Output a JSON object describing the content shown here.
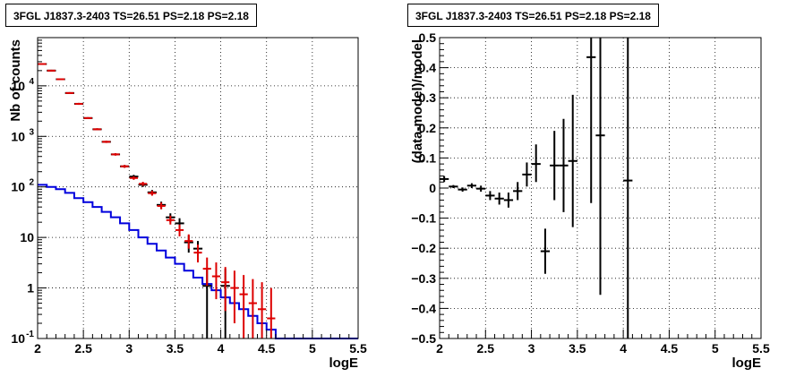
{
  "chart_data": [
    {
      "type": "line",
      "title": "3FGL J1837.3-2403 TS=26.51 PS=2.18 PS=2.18",
      "xlabel": "logE",
      "ylabel": "Nb of counts",
      "xlim": [
        2,
        5.5
      ],
      "ylim": [
        0.1,
        90000
      ],
      "yscale": "log",
      "grid": true,
      "x_ticks": [
        "2",
        "2.5",
        "3",
        "3.5",
        "4",
        "4.5",
        "5",
        "5.5"
      ],
      "y_ticks": [
        {
          "v": 0.1,
          "label": "10",
          "exp": "-1"
        },
        {
          "v": 1,
          "label": "1",
          "exp": ""
        },
        {
          "v": 10,
          "label": "10",
          "exp": ""
        },
        {
          "v": 100,
          "label": "10",
          "exp": "2"
        },
        {
          "v": 1000,
          "label": "10",
          "exp": "3"
        },
        {
          "v": 10000,
          "label": "10",
          "exp": "4"
        }
      ],
      "colors": {
        "data": "#000000",
        "model": "#dd0000",
        "background": "#0000dd"
      },
      "bin_width": 0.1,
      "data_points": [
        {
          "x": 2.05,
          "y": 27000,
          "lo": 26800,
          "hi": 27200
        },
        {
          "x": 2.15,
          "y": 20000,
          "lo": 19850,
          "hi": 20150
        },
        {
          "x": 2.25,
          "y": 13500,
          "lo": 13380,
          "hi": 13620
        },
        {
          "x": 2.35,
          "y": 7200,
          "lo": 7110,
          "hi": 7290
        },
        {
          "x": 2.45,
          "y": 4400,
          "lo": 4330,
          "hi": 4470
        },
        {
          "x": 2.55,
          "y": 2300,
          "lo": 2250,
          "hi": 2350
        },
        {
          "x": 2.65,
          "y": 1380,
          "lo": 1340,
          "hi": 1420
        },
        {
          "x": 2.75,
          "y": 780,
          "lo": 750,
          "hi": 810
        },
        {
          "x": 2.85,
          "y": 440,
          "lo": 420,
          "hi": 460
        },
        {
          "x": 2.95,
          "y": 255,
          "lo": 240,
          "hi": 270
        },
        {
          "x": 3.05,
          "y": 160,
          "lo": 147,
          "hi": 173
        },
        {
          "x": 3.15,
          "y": 110,
          "lo": 100,
          "hi": 120
        },
        {
          "x": 3.25,
          "y": 78,
          "lo": 69,
          "hi": 87
        },
        {
          "x": 3.35,
          "y": 44,
          "lo": 37,
          "hi": 51
        },
        {
          "x": 3.45,
          "y": 25,
          "lo": 20,
          "hi": 30
        },
        {
          "x": 3.55,
          "y": 19,
          "lo": 15,
          "hi": 24
        },
        {
          "x": 3.65,
          "y": 8,
          "lo": 5,
          "hi": 11
        },
        {
          "x": 3.75,
          "y": 6,
          "lo": 4,
          "hi": 8.5
        },
        {
          "x": 3.85,
          "y": 1.1,
          "lo": 0.1,
          "hi": 2.4
        },
        {
          "x": 4.05,
          "y": 1.1,
          "lo": 0.1,
          "hi": 2.4
        }
      ],
      "model_points": [
        {
          "x": 2.05,
          "y": 27000,
          "lo": 26000,
          "hi": 28000
        },
        {
          "x": 2.15,
          "y": 20000,
          "lo": 19200,
          "hi": 20800
        },
        {
          "x": 2.25,
          "y": 13500,
          "lo": 13000,
          "hi": 14000
        },
        {
          "x": 2.35,
          "y": 7200,
          "lo": 6900,
          "hi": 7500
        },
        {
          "x": 2.45,
          "y": 4400,
          "lo": 4200,
          "hi": 4600
        },
        {
          "x": 2.55,
          "y": 2300,
          "lo": 2200,
          "hi": 2400
        },
        {
          "x": 2.65,
          "y": 1380,
          "lo": 1320,
          "hi": 1450
        },
        {
          "x": 2.75,
          "y": 780,
          "lo": 740,
          "hi": 820
        },
        {
          "x": 2.85,
          "y": 440,
          "lo": 415,
          "hi": 465
        },
        {
          "x": 2.95,
          "y": 255,
          "lo": 238,
          "hi": 272
        },
        {
          "x": 3.05,
          "y": 150,
          "lo": 138,
          "hi": 162
        },
        {
          "x": 3.15,
          "y": 115,
          "lo": 105,
          "hi": 126
        },
        {
          "x": 3.25,
          "y": 75,
          "lo": 67,
          "hi": 84
        },
        {
          "x": 3.35,
          "y": 42,
          "lo": 36,
          "hi": 49
        },
        {
          "x": 3.45,
          "y": 22,
          "lo": 18,
          "hi": 27
        },
        {
          "x": 3.55,
          "y": 14,
          "lo": 10.5,
          "hi": 18
        },
        {
          "x": 3.65,
          "y": 8.5,
          "lo": 6,
          "hi": 11.5
        },
        {
          "x": 3.75,
          "y": 5,
          "lo": 3.2,
          "hi": 7.2
        },
        {
          "x": 3.85,
          "y": 2.4,
          "lo": 1.1,
          "hi": 4
        },
        {
          "x": 3.95,
          "y": 1.7,
          "lo": 0.6,
          "hi": 3.2
        },
        {
          "x": 4.05,
          "y": 1.3,
          "lo": 0.35,
          "hi": 2.6
        },
        {
          "x": 4.15,
          "y": 1.0,
          "lo": 0.2,
          "hi": 2.2
        },
        {
          "x": 4.25,
          "y": 0.75,
          "lo": 0.1,
          "hi": 1.8
        },
        {
          "x": 4.35,
          "y": 0.5,
          "lo": 0.1,
          "hi": 1.5
        },
        {
          "x": 4.45,
          "y": 0.38,
          "lo": 0.1,
          "hi": 1.3
        },
        {
          "x": 4.55,
          "y": 0.25,
          "lo": 0.1,
          "hi": 1.0
        }
      ],
      "background_edges": [
        2.0,
        2.1,
        2.2,
        2.3,
        2.4,
        2.5,
        2.6,
        2.7,
        2.8,
        2.9,
        3.0,
        3.1,
        3.2,
        3.3,
        3.4,
        3.5,
        3.6,
        3.7,
        3.8,
        3.9,
        4.0,
        4.1,
        4.2,
        4.3,
        4.4,
        4.5,
        4.6,
        5.5
      ],
      "background_values": [
        110,
        100,
        90,
        76,
        60,
        50,
        40,
        32,
        25,
        19,
        14,
        10,
        7.5,
        5.5,
        4,
        3,
        2.2,
        1.6,
        1.2,
        0.9,
        0.65,
        0.5,
        0.38,
        0.28,
        0.2,
        0.15,
        0.1
      ]
    },
    {
      "type": "scatter",
      "title": "3FGL J1837.3-2403 TS=26.51 PS=2.18 PS=2.18",
      "xlabel": "logE",
      "ylabel": "(data-model)/model",
      "xlim": [
        2,
        5.5
      ],
      "ylim": [
        -0.5,
        0.5
      ],
      "grid": true,
      "x_ticks": [
        "2",
        "2.5",
        "3",
        "3.5",
        "4",
        "4.5",
        "5",
        "5.5"
      ],
      "y_ticks": [
        "−0.5",
        "−0.4",
        "−0.3",
        "−0.2",
        "−0.1",
        "0",
        "0.1",
        "0.2",
        "0.3",
        "0.4",
        "0.5"
      ],
      "color": "#000000",
      "bin_width": 0.1,
      "points": [
        {
          "x": 2.05,
          "y": 0.03,
          "lo": 0.02,
          "hi": 0.04
        },
        {
          "x": 2.15,
          "y": 0.005,
          "lo": 0.0,
          "hi": 0.01
        },
        {
          "x": 2.25,
          "y": -0.005,
          "lo": -0.012,
          "hi": 0.002
        },
        {
          "x": 2.35,
          "y": 0.008,
          "lo": 0.0,
          "hi": 0.016
        },
        {
          "x": 2.45,
          "y": -0.002,
          "lo": -0.012,
          "hi": 0.008
        },
        {
          "x": 2.55,
          "y": -0.025,
          "lo": -0.04,
          "hi": -0.01
        },
        {
          "x": 2.65,
          "y": -0.035,
          "lo": -0.055,
          "hi": -0.015
        },
        {
          "x": 2.75,
          "y": -0.04,
          "lo": -0.065,
          "hi": -0.015
        },
        {
          "x": 2.85,
          "y": -0.01,
          "lo": -0.04,
          "hi": 0.02
        },
        {
          "x": 2.95,
          "y": 0.045,
          "lo": 0.005,
          "hi": 0.085
        },
        {
          "x": 3.05,
          "y": 0.08,
          "lo": 0.02,
          "hi": 0.145
        },
        {
          "x": 3.15,
          "y": -0.21,
          "lo": -0.285,
          "hi": -0.135
        },
        {
          "x": 3.25,
          "y": 0.075,
          "lo": -0.04,
          "hi": 0.19
        },
        {
          "x": 3.35,
          "y": 0.075,
          "lo": -0.08,
          "hi": 0.23
        },
        {
          "x": 3.45,
          "y": 0.09,
          "lo": -0.13,
          "hi": 0.31
        },
        {
          "x": 3.65,
          "y": 0.435,
          "lo": -0.05,
          "hi": 0.5
        },
        {
          "x": 3.75,
          "y": 0.175,
          "lo": -0.355,
          "hi": 0.5
        },
        {
          "x": 4.05,
          "y": 0.025,
          "lo": -0.5,
          "hi": 0.5
        }
      ]
    }
  ]
}
